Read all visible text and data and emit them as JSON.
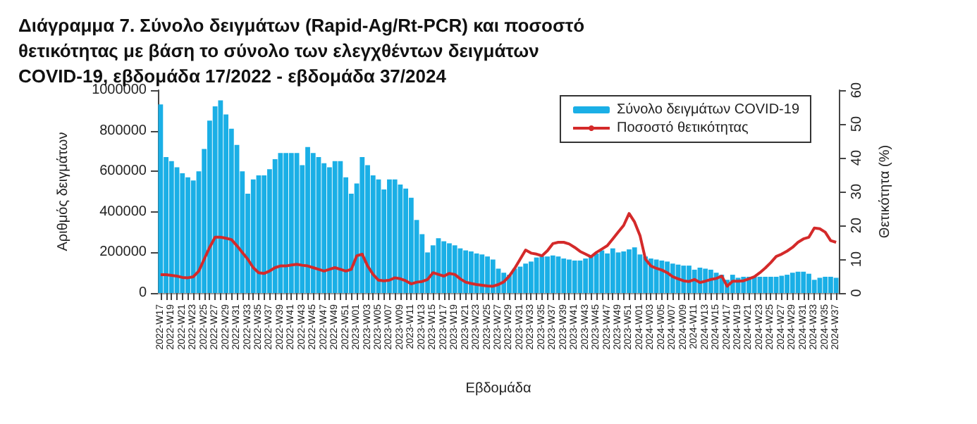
{
  "chart_data": {
    "type": "bar",
    "title": "Διάγραμμα 7. Σύνολο δειγμάτων (Rapid-Ag/Rt-PCR) και ποσοστό θετικότητας με βάση το σύνολο των ελεγχθέντων δειγμάτων COVID-19, εβδομάδα 17/2022 - εβδομάδα 37/2024",
    "xlabel": "Εβδομάδα",
    "ylabel": "Αριθμός δειγμάτων",
    "y2label": "Θετικότητα (%)",
    "categories": [
      "2022-W17",
      null,
      "2022-W19",
      null,
      "2022-W21",
      null,
      "2022-W23",
      null,
      "2022-W25",
      null,
      "2022-W27",
      null,
      "2022-W29",
      null,
      "2022-W31",
      null,
      "2022-W33",
      null,
      "2022-W35",
      null,
      "2022-W37",
      null,
      "2022-W39",
      null,
      "2022-W41",
      null,
      "2022-W43",
      null,
      "2022-W45",
      null,
      "2022-W47",
      null,
      "2022-W49",
      null,
      "2022-W51",
      null,
      "2023-W01",
      null,
      "2023-W03",
      null,
      "2023-W05",
      null,
      "2023-W07",
      null,
      "2023-W09",
      null,
      "2023-W11",
      null,
      "2023-W13",
      null,
      "2023-W15",
      null,
      "2023-W17",
      null,
      "2023-W19",
      null,
      "2023-W21",
      null,
      "2023-W23",
      null,
      "2023-W25",
      null,
      "2023-W27",
      null,
      "2023-W29",
      null,
      "2023-W31",
      null,
      "2023-W33",
      null,
      "2023-W35",
      null,
      "2023-W37",
      null,
      "2023-W39",
      null,
      "2023-W41",
      null,
      "2023-W43",
      null,
      "2023-W45",
      null,
      "2023-W47",
      null,
      "2023-W49",
      null,
      "2023-W51",
      null,
      "2024-W01",
      null,
      "2024-W03",
      null,
      "2024-W05",
      null,
      "2024-W07",
      null,
      "2024-W09",
      null,
      "2024-W11",
      null,
      "2024-W13",
      null,
      "2024-W15",
      null,
      "2024-W17",
      null,
      "2024-W19",
      null,
      "2024-W21",
      null,
      "2024-W23",
      null,
      "2024-W25",
      null,
      "2024-W27",
      null,
      "2024-W29",
      null,
      "2024-W31",
      null,
      "2024-W33",
      null,
      "2024-W35",
      null,
      "2024-W37"
    ],
    "series": [
      {
        "name": "Σύνολο δειγμάτων COVID-19",
        "color": "#1aafe6",
        "values": [
          930000,
          670000,
          650000,
          620000,
          590000,
          570000,
          555000,
          600000,
          710000,
          850000,
          920000,
          950000,
          880000,
          810000,
          730000,
          600000,
          490000,
          560000,
          580000,
          580000,
          610000,
          660000,
          690000,
          690000,
          690000,
          690000,
          630000,
          720000,
          690000,
          670000,
          640000,
          620000,
          650000,
          650000,
          570000,
          490000,
          540000,
          670000,
          630000,
          580000,
          560000,
          510000,
          560000,
          560000,
          535000,
          515000,
          470000,
          360000,
          290000,
          200000,
          235000,
          270000,
          255000,
          245000,
          235000,
          220000,
          210000,
          205000,
          195000,
          190000,
          180000,
          165000,
          120000,
          100000,
          90000,
          120000,
          130000,
          145000,
          155000,
          175000,
          180000,
          180000,
          185000,
          180000,
          170000,
          165000,
          160000,
          160000,
          170000,
          180000,
          195000,
          210000,
          195000,
          220000,
          200000,
          205000,
          215000,
          225000,
          190000,
          180000,
          170000,
          165000,
          160000,
          155000,
          145000,
          140000,
          135000,
          135000,
          115000,
          125000,
          120000,
          115000,
          100000,
          90000,
          65000,
          90000,
          75000,
          80000,
          80000,
          80000,
          80000,
          80000,
          80000,
          80000,
          85000,
          90000,
          100000,
          105000,
          105000,
          95000,
          65000,
          75000,
          80000,
          80000,
          75000
        ]
      },
      {
        "name": "Ποσοστό θετικότητας",
        "type": "line",
        "axis": "y2",
        "color": "#d42a2a",
        "values": [
          5.4,
          5.4,
          5.2,
          5,
          4.6,
          4.5,
          4.8,
          6.5,
          10,
          13.5,
          16.5,
          16.5,
          16.2,
          15.8,
          14,
          12,
          10,
          7.5,
          6,
          5.8,
          6.5,
          7.5,
          8,
          8,
          8.3,
          8.5,
          8.2,
          8,
          7.5,
          7,
          6.5,
          7,
          7.5,
          7,
          6.5,
          7,
          11,
          11.5,
          8,
          5.5,
          3.8,
          3.6,
          3.8,
          4.5,
          4.2,
          3.6,
          2.7,
          3.2,
          3.4,
          4,
          6,
          5.5,
          5,
          5.8,
          5.5,
          4.2,
          3.2,
          2.8,
          2.5,
          2.3,
          2.1,
          2,
          2.5,
          3.3,
          5,
          7.3,
          10,
          12.7,
          11.8,
          11.5,
          11,
          12.5,
          14.6,
          15,
          15,
          14.5,
          13.5,
          12.3,
          11.5,
          10.7,
          12,
          13,
          14,
          16,
          18,
          20,
          23.5,
          21,
          17,
          10,
          8,
          7.3,
          6.8,
          6,
          4.8,
          4.2,
          3.6,
          3.4,
          4,
          3.1,
          3.5,
          4,
          4.3,
          5,
          2,
          3.5,
          3.5,
          3.6,
          4.2,
          4.8,
          6,
          7.4,
          9,
          10.8,
          11.5,
          12.4,
          13.5,
          15,
          16,
          16.5,
          19.2,
          19,
          18,
          15.5,
          15
        ]
      }
    ],
    "ylim": [
      0,
      1000000
    ],
    "yticks": [
      0,
      200000,
      400000,
      600000,
      800000,
      1000000
    ],
    "y2lim": [
      0,
      60
    ],
    "y2ticks": [
      0,
      10,
      20,
      30,
      40,
      50,
      60
    ],
    "legend": "top right",
    "grid": false,
    "marker": "none",
    "line_style": "solid"
  }
}
